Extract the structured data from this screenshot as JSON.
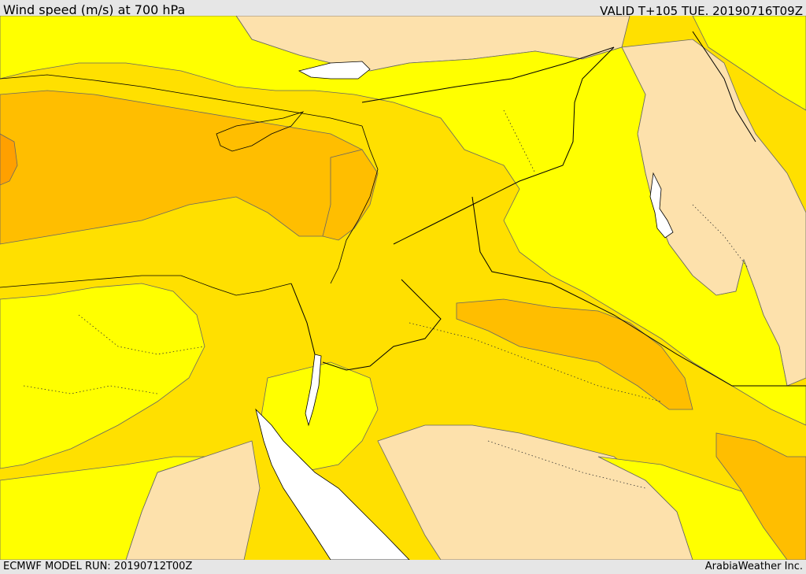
{
  "header": {
    "title": "Wind speed (m/s) at 700 hPa",
    "valid": "VALID T+105 TUE. 20190716T09Z"
  },
  "footer": {
    "model_run": "ECMWF MODEL RUN: 20190712T00Z",
    "brand": "ArabiaWeather Inc."
  },
  "colors": {
    "band_0_5": "#fde1ac",
    "band_5_10": "#ffff00",
    "band_10_15": "#ffe000",
    "band_15_20": "#ffbe00",
    "band_20_plus": "#ffa000",
    "sea": "#ffffff",
    "border": "#000000",
    "contour": "#666666"
  }
}
